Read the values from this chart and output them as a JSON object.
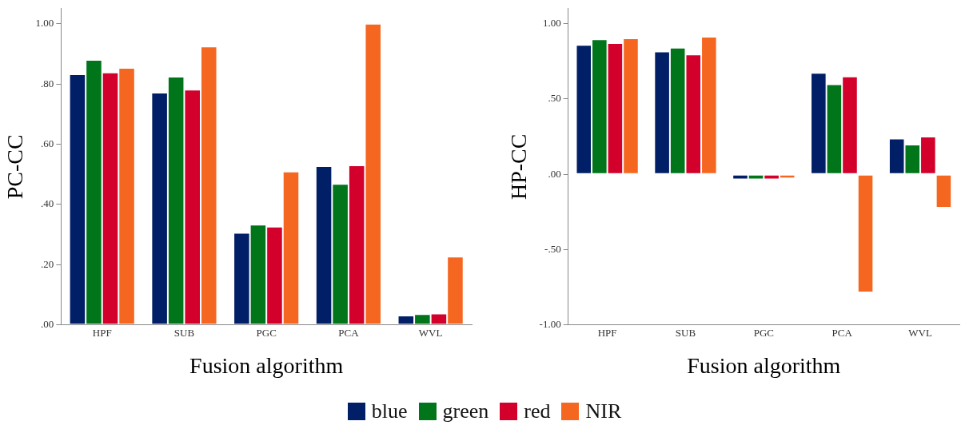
{
  "chart_data": [
    {
      "type": "bar",
      "xlabel": "Fusion algorithm",
      "ylabel": "PC-CC",
      "categories": [
        "HPF",
        "SUB",
        "PGC",
        "PCA",
        "WVL"
      ],
      "legend": "bottom",
      "grid": false,
      "ylim": [
        0,
        1.05
      ],
      "yticks": [
        {
          "value": 0,
          "label": ".00"
        },
        {
          "value": 0.2,
          "label": ".20"
        },
        {
          "value": 0.4,
          "label": ".40"
        },
        {
          "value": 0.6,
          "label": ".60"
        },
        {
          "value": 0.8,
          "label": ".80"
        },
        {
          "value": 1,
          "label": "1.00"
        }
      ],
      "series": [
        {
          "name": "blue",
          "color": "#001f66",
          "values": [
            0.832,
            0.771,
            0.306,
            0.527,
            0.031
          ]
        },
        {
          "name": "green",
          "color": "#00751a",
          "values": [
            0.88,
            0.824,
            0.333,
            0.468,
            0.036
          ]
        },
        {
          "name": "red",
          "color": "#d2002b",
          "values": [
            0.838,
            0.781,
            0.326,
            0.53,
            0.038
          ]
        },
        {
          "name": "NIR",
          "color": "#f56721",
          "values": [
            0.853,
            0.924,
            0.509,
            1.0,
            0.227
          ]
        }
      ]
    },
    {
      "type": "bar",
      "xlabel": "Fusion algorithm",
      "ylabel": "HP-CC",
      "categories": [
        "HPF",
        "SUB",
        "PGC",
        "PCA",
        "WVL"
      ],
      "legend": "bottom",
      "grid": false,
      "ylim": [
        -1,
        1.1
      ],
      "yticks": [
        {
          "value": -1,
          "label": "-1.00"
        },
        {
          "value": -0.5,
          "label": "-.50"
        },
        {
          "value": 0,
          "label": ".00"
        },
        {
          "value": 0.5,
          "label": ".50"
        },
        {
          "value": 1,
          "label": "1.00"
        }
      ],
      "series": [
        {
          "name": "blue",
          "color": "#001f66",
          "values": [
            0.859,
            0.815,
            -0.033,
            0.674,
            0.237
          ]
        },
        {
          "name": "green",
          "color": "#00751a",
          "values": [
            0.896,
            0.84,
            -0.033,
            0.598,
            0.197
          ]
        },
        {
          "name": "red",
          "color": "#d2002b",
          "values": [
            0.871,
            0.795,
            -0.033,
            0.649,
            0.251
          ]
        },
        {
          "name": "NIR",
          "color": "#f56721",
          "values": [
            0.903,
            0.913,
            -0.027,
            -0.784,
            -0.222
          ]
        }
      ]
    }
  ]
}
